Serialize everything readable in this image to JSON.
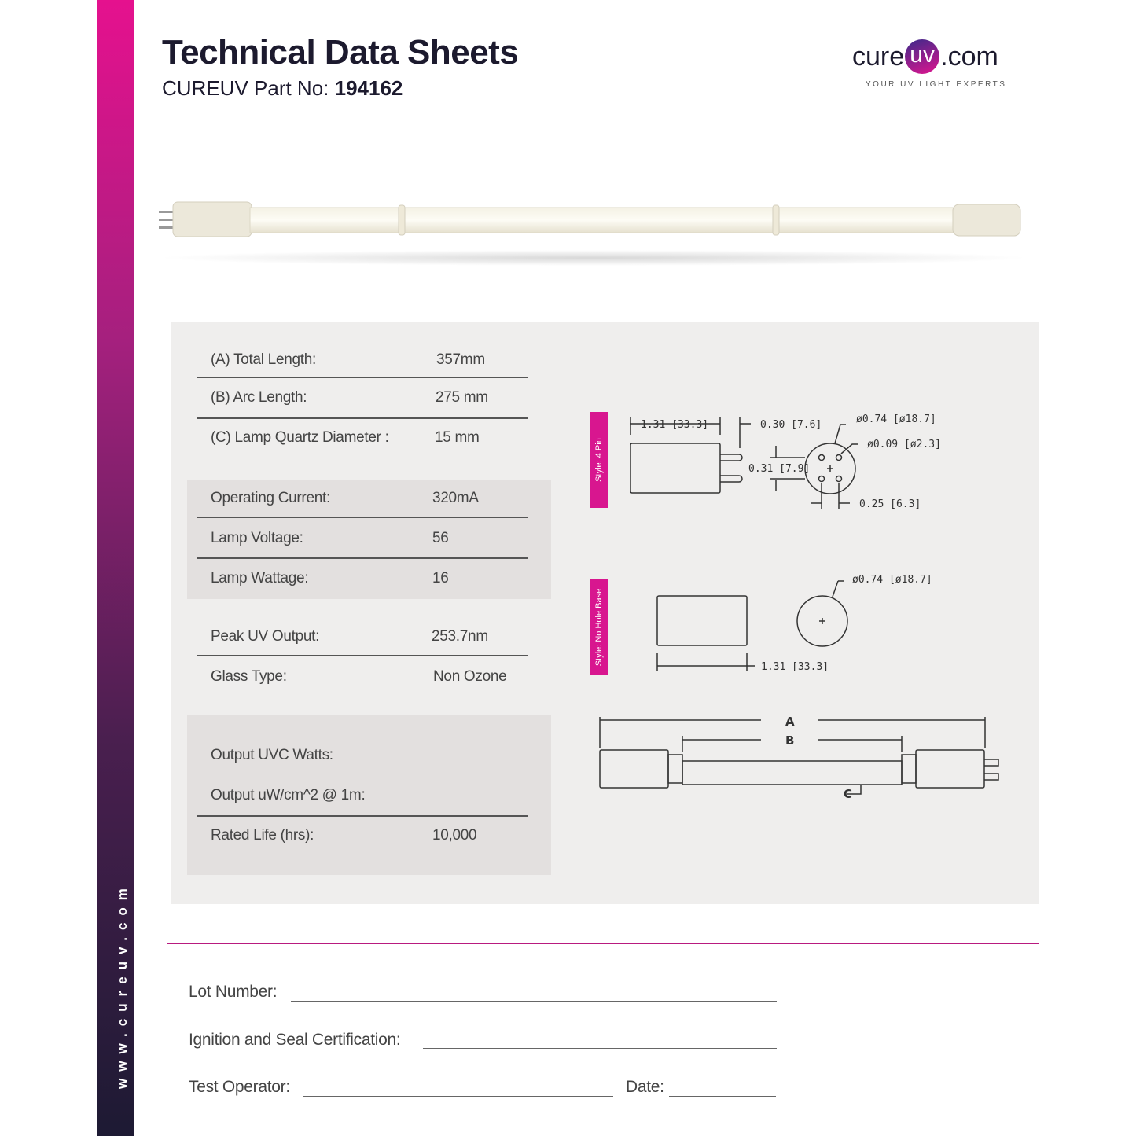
{
  "sidebar": {
    "website": "www.cureuv.com"
  },
  "header": {
    "title": "Technical Data Sheets",
    "part_label": "CUREUV Part No:",
    "part_number": "194162"
  },
  "logo": {
    "text_left": "cure",
    "text_circle": "uv",
    "text_right": ".com",
    "tagline": "YOUR UV LIGHT EXPERTS"
  },
  "specs": [
    {
      "label": "(A) Total Length:",
      "value": "357mm"
    },
    {
      "label": "(B) Arc Length:",
      "value": "275 mm"
    },
    {
      "label": "(C) Lamp Quartz Diameter :",
      "value": "15 mm"
    },
    {
      "label": "Operating Current:",
      "value": "320mA"
    },
    {
      "label": "Lamp Voltage:",
      "value": "56"
    },
    {
      "label": "Lamp Wattage:",
      "value": "16"
    },
    {
      "label": "Peak UV Output:",
      "value": "253.7nm"
    },
    {
      "label": "Glass Type:",
      "value": "Non Ozone"
    },
    {
      "label": "Output UVC Watts:",
      "value": ""
    },
    {
      "label": "Output uW/cm^2 @ 1m:",
      "value": ""
    },
    {
      "label": "Rated Life (hrs):",
      "value": "10,000"
    }
  ],
  "diagrams": {
    "style_4pin": "Style: 4 Pin",
    "style_nohole": "Style: No Hole Base",
    "dim_len": "1.31  [33.3]",
    "dim_pin": "0.30  [7.6]",
    "dim_dia": "ø0.74  [ø18.7]",
    "dim_pindia": "ø0.09  [ø2.3]",
    "dim_pinspace_v": "0.31  [7.9]",
    "dim_pinspace_h": "0.25  [6.3]",
    "label_a": "A",
    "label_b": "B",
    "label_c": "C"
  },
  "colors": {
    "accent": "#d8168f",
    "dark": "#1c1a2e",
    "panel": "#efeeed"
  },
  "form": {
    "lot": "Lot Number:",
    "ignition": "Ignition and Seal Certification:",
    "operator": "Test Operator:",
    "date": "Date:"
  }
}
